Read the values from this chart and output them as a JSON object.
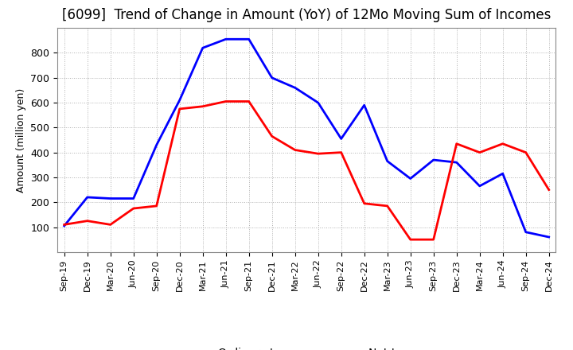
{
  "title": "[6099]  Trend of Change in Amount (YoY) of 12Mo Moving Sum of Incomes",
  "ylabel": "Amount (million yen)",
  "x_labels": [
    "Sep-19",
    "Dec-19",
    "Mar-20",
    "Jun-20",
    "Sep-20",
    "Dec-20",
    "Mar-21",
    "Jun-21",
    "Sep-21",
    "Dec-21",
    "Mar-22",
    "Jun-22",
    "Sep-22",
    "Dec-22",
    "Mar-23",
    "Jun-23",
    "Sep-23",
    "Dec-23",
    "Mar-24",
    "Jun-24",
    "Sep-24",
    "Dec-24"
  ],
  "ordinary_income": [
    105,
    220,
    215,
    215,
    430,
    610,
    820,
    855,
    855,
    700,
    660,
    600,
    455,
    590,
    365,
    295,
    370,
    360,
    265,
    315,
    80,
    60
  ],
  "net_income": [
    110,
    125,
    110,
    175,
    185,
    575,
    585,
    605,
    605,
    465,
    410,
    395,
    400,
    195,
    185,
    50,
    50,
    435,
    400,
    435,
    400,
    250
  ],
  "ordinary_color": "#0000ff",
  "net_color": "#ff0000",
  "ylim": [
    0,
    900
  ],
  "yticks": [
    100,
    200,
    300,
    400,
    500,
    600,
    700,
    800
  ],
  "grid_color": "#b0b0b0",
  "background_color": "#ffffff",
  "title_fontsize": 12,
  "axis_fontsize": 9,
  "legend_fontsize": 10
}
